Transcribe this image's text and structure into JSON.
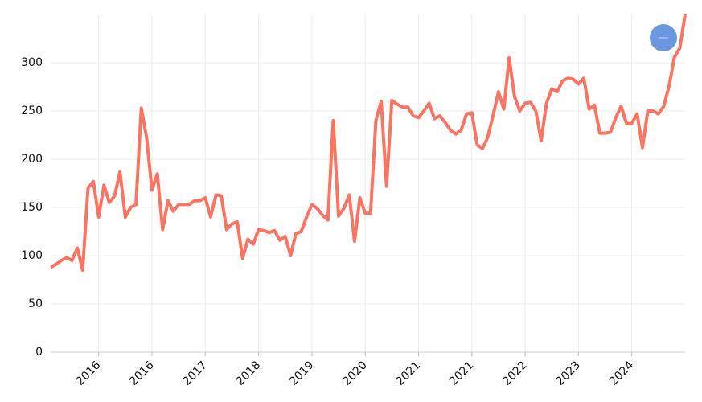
{
  "chart_data": {
    "type": "line",
    "categories": [
      null,
      null,
      null,
      null,
      null,
      null,
      null,
      null,
      null,
      "2016",
      null,
      null,
      null,
      null,
      null,
      null,
      null,
      null,
      null,
      "2016",
      null,
      null,
      null,
      null,
      null,
      null,
      null,
      null,
      null,
      "2017",
      null,
      null,
      null,
      null,
      null,
      null,
      null,
      null,
      null,
      "2018",
      null,
      null,
      null,
      null,
      null,
      null,
      null,
      null,
      null,
      "2019",
      null,
      null,
      null,
      null,
      null,
      null,
      null,
      null,
      null,
      "2020",
      null,
      null,
      null,
      null,
      null,
      null,
      null,
      null,
      null,
      "2021",
      null,
      null,
      null,
      null,
      null,
      null,
      null,
      null,
      null,
      "2021",
      null,
      null,
      null,
      null,
      null,
      null,
      null,
      null,
      null,
      "2022",
      null,
      null,
      null,
      null,
      null,
      null,
      null,
      null,
      null,
      "2023",
      null,
      null,
      null,
      null,
      null,
      null,
      null,
      null,
      null,
      "2024",
      null,
      null,
      null,
      null,
      null,
      null,
      null,
      null,
      null,
      null
    ],
    "values": [
      88,
      91,
      95,
      98,
      95,
      108,
      85,
      170,
      177,
      140,
      173,
      155,
      162,
      187,
      140,
      150,
      153,
      253,
      222,
      168,
      185,
      127,
      157,
      146,
      153,
      153,
      153,
      157,
      157,
      160,
      140,
      163,
      162,
      127,
      133,
      135,
      97,
      117,
      112,
      127,
      126,
      124,
      126,
      116,
      120,
      100,
      123,
      125,
      140,
      153,
      149,
      142,
      137,
      240,
      141,
      149,
      163,
      115,
      160,
      144,
      144,
      240,
      260,
      172,
      261,
      257,
      254,
      254,
      245,
      243,
      250,
      258,
      242,
      245,
      238,
      230,
      226,
      230,
      247,
      248,
      215,
      211,
      223,
      246,
      270,
      252,
      305,
      265,
      250,
      258,
      259,
      250,
      219,
      258,
      273,
      270,
      281,
      284,
      283,
      278,
      284,
      252,
      256,
      227,
      227,
      228,
      243,
      255,
      237,
      237,
      247,
      212,
      250,
      250,
      247,
      255,
      276,
      306,
      315,
      350
    ],
    "color": "#f87463",
    "ylim": [
      0,
      350
    ],
    "yticks": [
      0,
      50,
      100,
      150,
      200,
      250,
      300
    ],
    "grid": true
  }
}
